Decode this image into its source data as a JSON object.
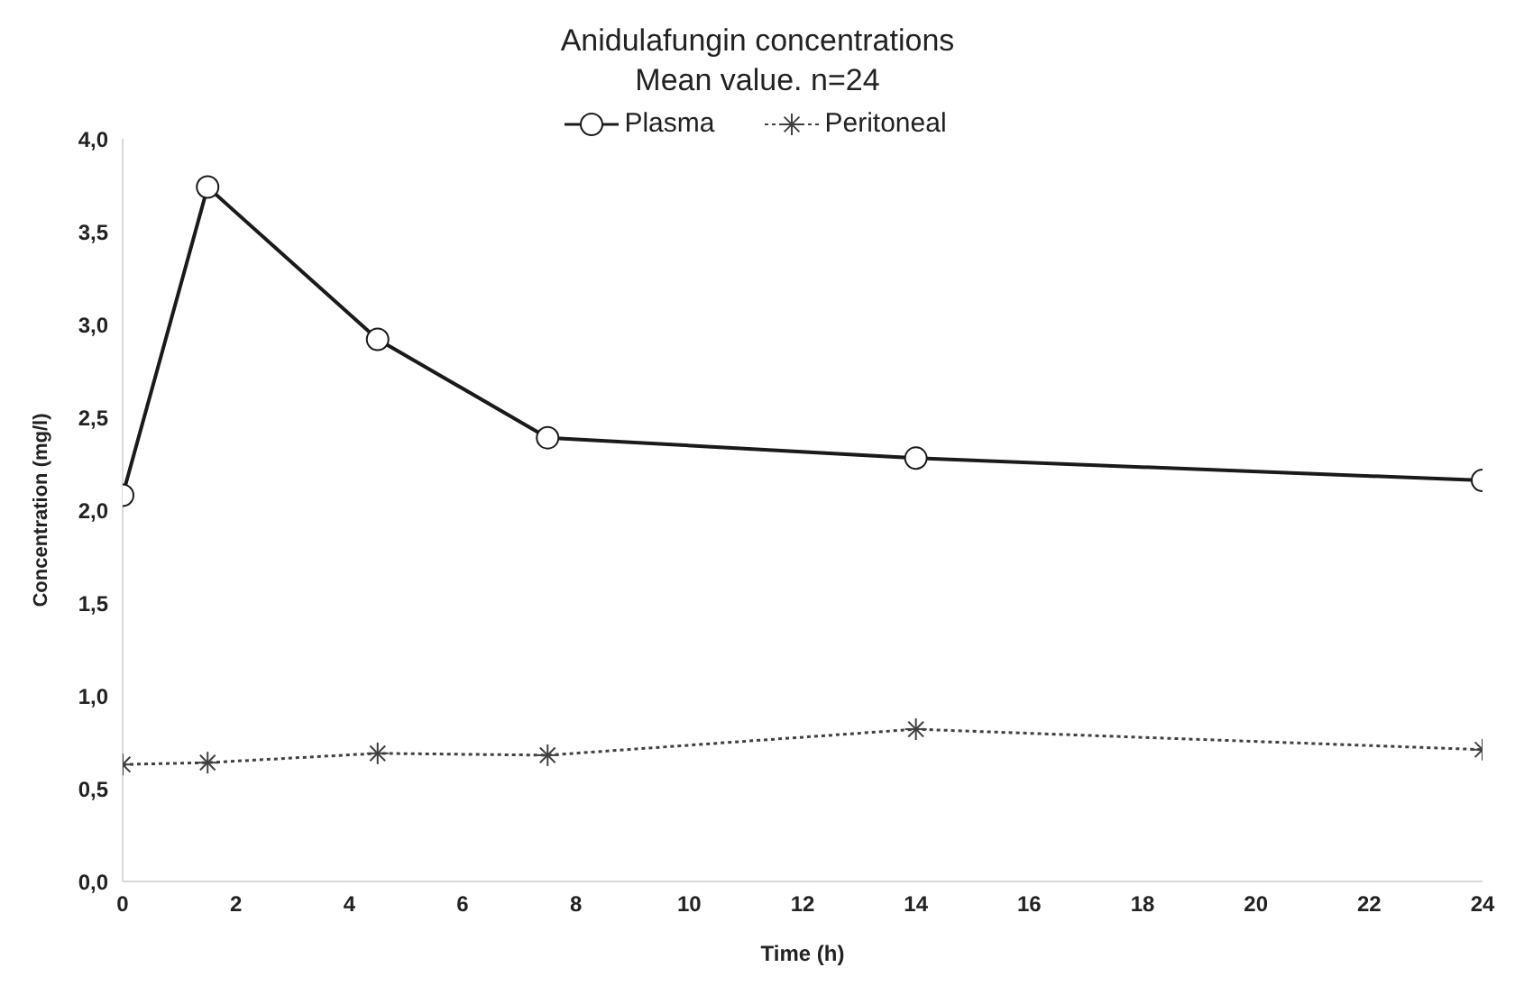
{
  "chart_data": {
    "type": "line",
    "title": "Anidulafungin concentrations",
    "subtitle": "Mean value. n=24",
    "xlabel": "Time (h)",
    "ylabel": "Concentration (mg/l)",
    "x": [
      0,
      1.5,
      4.5,
      7.5,
      14,
      24
    ],
    "series": [
      {
        "name": "Plasma",
        "color": "#1a1a1a",
        "marker": "circle",
        "line_style": "solid",
        "values": [
          2.08,
          3.74,
          2.92,
          2.39,
          2.28,
          2.16
        ]
      },
      {
        "name": "Peritoneal",
        "color": "#404040",
        "marker": "cross",
        "line_style": "dotted",
        "values": [
          0.63,
          0.64,
          0.69,
          0.68,
          0.82,
          0.71
        ]
      }
    ],
    "xlim": [
      0,
      24
    ],
    "xticks": [
      0,
      2,
      4,
      6,
      8,
      10,
      12,
      14,
      16,
      18,
      20,
      22,
      24
    ],
    "ylim": [
      0,
      4
    ],
    "yticks": [
      {
        "value": 0,
        "label": "0,0"
      },
      {
        "value": 0.5,
        "label": "0,5"
      },
      {
        "value": 1,
        "label": "1,0"
      },
      {
        "value": 1.5,
        "label": "1,5"
      },
      {
        "value": 2,
        "label": "2,0"
      },
      {
        "value": 2.5,
        "label": "2,5"
      },
      {
        "value": 3,
        "label": "3,0"
      },
      {
        "value": 3.5,
        "label": "3,5"
      },
      {
        "value": 4,
        "label": "4,0"
      }
    ],
    "grid": false,
    "legend": "top"
  }
}
